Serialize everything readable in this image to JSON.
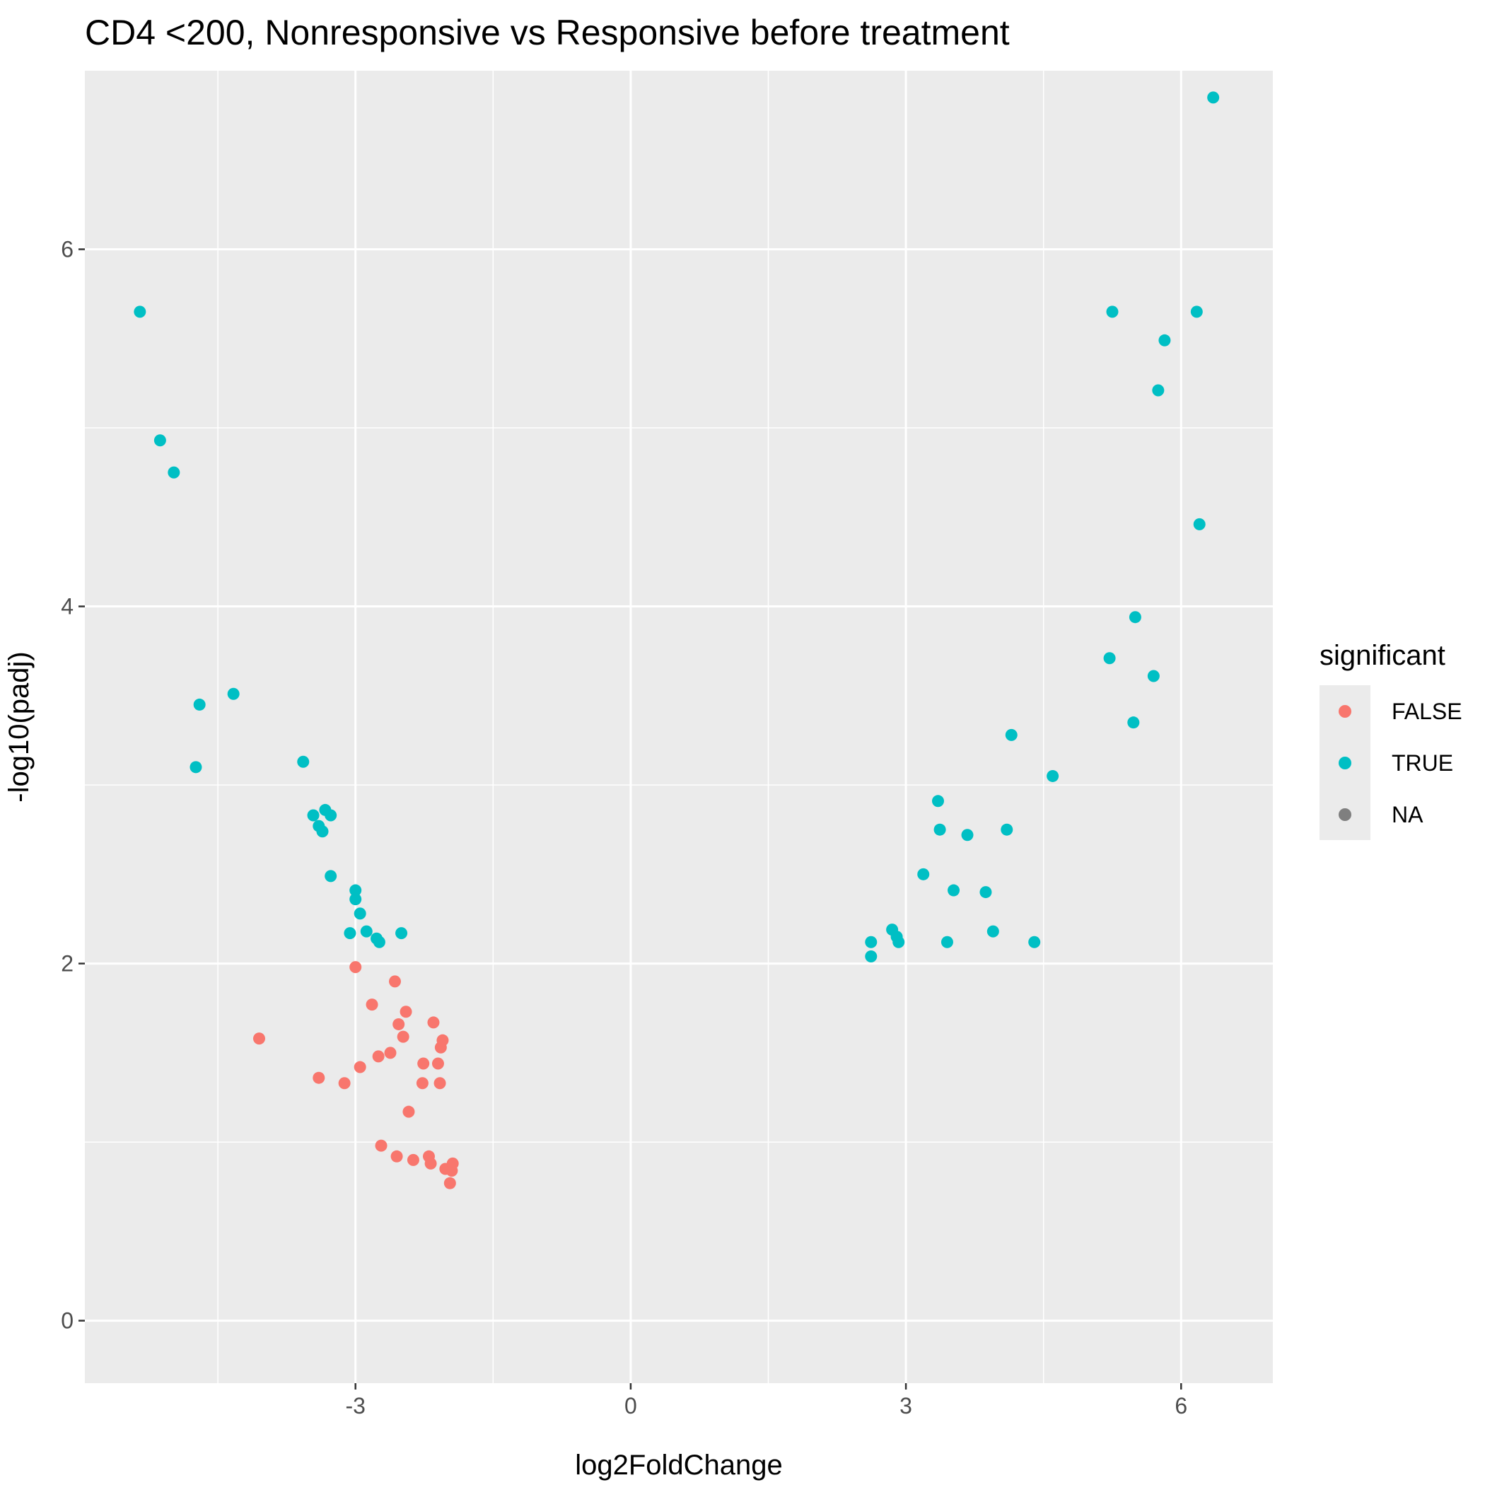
{
  "chart_data": {
    "type": "scatter",
    "title": "CD4 <200, Nonresponsive vs Responsive before treatment",
    "xlabel": "log2FoldChange",
    "ylabel": "-log10(padj)",
    "xlim": [
      -5.95,
      7.0
    ],
    "ylim": [
      -0.35,
      7.0
    ],
    "x_ticks": [
      -3,
      0,
      3,
      6
    ],
    "x_tick_labels": [
      "-3",
      "0",
      "3",
      "6"
    ],
    "y_ticks": [
      0,
      2,
      4,
      6
    ],
    "y_tick_labels": [
      "0",
      "2",
      "4",
      "6"
    ],
    "grid": true,
    "legend": {
      "title": "significant",
      "position": "right",
      "entries": [
        {
          "label": "FALSE",
          "color": "#F8766D"
        },
        {
          "label": "TRUE",
          "color": "#00BFC4"
        },
        {
          "label": "NA",
          "color": "#7F7F7F"
        }
      ]
    },
    "series": [
      {
        "name": "TRUE",
        "color": "#00BFC4",
        "points": [
          [
            -5.35,
            5.65
          ],
          [
            -5.13,
            4.93
          ],
          [
            -4.98,
            4.75
          ],
          [
            -4.7,
            3.45
          ],
          [
            -4.74,
            3.1
          ],
          [
            -4.33,
            3.51
          ],
          [
            -3.57,
            3.13
          ],
          [
            -3.46,
            2.83
          ],
          [
            -3.4,
            2.77
          ],
          [
            -3.36,
            2.74
          ],
          [
            -3.33,
            2.86
          ],
          [
            -3.27,
            2.83
          ],
          [
            -3.27,
            2.49
          ],
          [
            -3.0,
            2.41
          ],
          [
            -3.0,
            2.36
          ],
          [
            -2.95,
            2.28
          ],
          [
            -2.88,
            2.18
          ],
          [
            -3.06,
            2.17
          ],
          [
            -2.77,
            2.14
          ],
          [
            -2.74,
            2.12
          ],
          [
            -2.5,
            2.17
          ],
          [
            2.62,
            2.12
          ],
          [
            2.62,
            2.04
          ],
          [
            2.85,
            2.19
          ],
          [
            2.9,
            2.15
          ],
          [
            2.92,
            2.12
          ],
          [
            3.19,
            2.5
          ],
          [
            3.35,
            2.91
          ],
          [
            3.37,
            2.75
          ],
          [
            3.45,
            2.12
          ],
          [
            3.52,
            2.41
          ],
          [
            3.67,
            2.72
          ],
          [
            3.87,
            2.4
          ],
          [
            3.95,
            2.18
          ],
          [
            4.1,
            2.75
          ],
          [
            4.15,
            3.28
          ],
          [
            4.4,
            2.12
          ],
          [
            4.6,
            3.05
          ],
          [
            5.22,
            3.71
          ],
          [
            5.25,
            5.65
          ],
          [
            5.48,
            3.35
          ],
          [
            5.5,
            3.94
          ],
          [
            5.7,
            3.61
          ],
          [
            5.75,
            5.21
          ],
          [
            5.82,
            5.49
          ],
          [
            6.17,
            5.65
          ],
          [
            6.2,
            4.46
          ],
          [
            6.35,
            6.85
          ]
        ]
      },
      {
        "name": "FALSE",
        "color": "#F8766D",
        "points": [
          [
            -4.05,
            1.58
          ],
          [
            -3.4,
            1.36
          ],
          [
            -3.12,
            1.33
          ],
          [
            -3.0,
            1.98
          ],
          [
            -2.95,
            1.42
          ],
          [
            -2.82,
            1.77
          ],
          [
            -2.75,
            1.48
          ],
          [
            -2.72,
            0.98
          ],
          [
            -2.62,
            1.5
          ],
          [
            -2.57,
            1.9
          ],
          [
            -2.55,
            0.92
          ],
          [
            -2.53,
            1.66
          ],
          [
            -2.48,
            1.59
          ],
          [
            -2.45,
            1.73
          ],
          [
            -2.42,
            1.17
          ],
          [
            -2.37,
            0.9
          ],
          [
            -2.27,
            1.33
          ],
          [
            -2.26,
            1.44
          ],
          [
            -2.2,
            0.92
          ],
          [
            -2.18,
            0.88
          ],
          [
            -2.15,
            1.67
          ],
          [
            -2.1,
            1.44
          ],
          [
            -2.08,
            1.33
          ],
          [
            -2.07,
            1.53
          ],
          [
            -2.05,
            1.57
          ],
          [
            -2.02,
            0.85
          ],
          [
            -1.97,
            0.77
          ],
          [
            -1.95,
            0.84
          ],
          [
            -1.94,
            0.88
          ]
        ]
      }
    ]
  }
}
